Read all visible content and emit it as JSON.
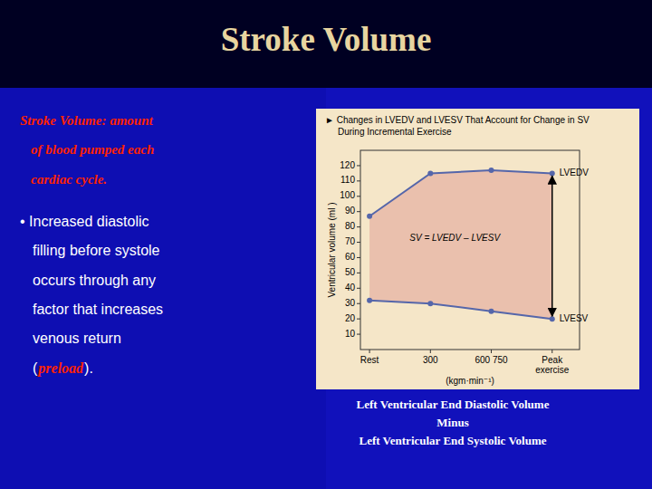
{
  "chart_data": {
    "type": "line",
    "title": "Stroke Volume",
    "subtitle": [
      "► Changes in LVEDV and LVESV That Account for Change in SV",
      "During Incremental Exercise"
    ],
    "categories": [
      "Rest",
      "300",
      "600 750",
      "Peak\nexercise"
    ],
    "series": [
      {
        "name": "LVEDV",
        "color": "#5566AA",
        "marker": "circle",
        "values": [
          87,
          115,
          117,
          115
        ]
      },
      {
        "name": "LVESV",
        "color": "#5566AA",
        "marker": "circle",
        "values": [
          32,
          30,
          25,
          20
        ]
      }
    ],
    "x_label": "(kgm·min⁻¹)",
    "y_label": "Ventricular volume (ml )",
    "ylim": [
      0,
      130
    ],
    "yticks": [
      10,
      20,
      30,
      40,
      50,
      60,
      70,
      80,
      90,
      100,
      110,
      120
    ],
    "grid": false,
    "annotations": [
      "SV = LVEDV – LVESV",
      "Stroke Volume: amount",
      "of blood pumped each",
      "cardiac cycle.",
      "• Increased diastolic",
      "filling before systole",
      "occurs through any",
      "factor that increases",
      "venous return",
      "(",
      "preload",
      ").",
      "Left Ventricular End Diastolic Volume",
      "Minus",
      "Left Ventricular End Systolic Volume"
    ]
  }
}
